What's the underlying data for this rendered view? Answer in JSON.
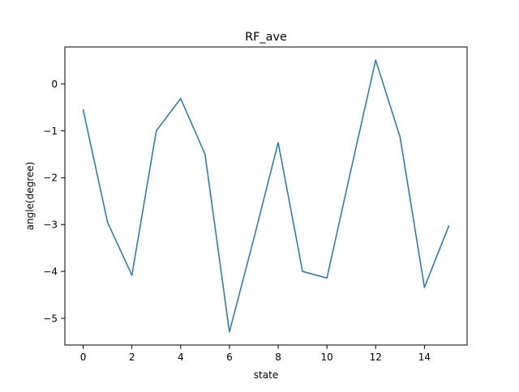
{
  "chart_data": {
    "type": "line",
    "title": "RF_ave",
    "xlabel": "state",
    "ylabel": "angle(degree)",
    "xlim": [
      -0.75,
      15.75
    ],
    "ylim": [
      -5.57,
      0.79
    ],
    "xticks": [
      0,
      2,
      4,
      6,
      8,
      10,
      12,
      14
    ],
    "xtick_labels": [
      "0",
      "2",
      "4",
      "6",
      "8",
      "10",
      "12",
      "14"
    ],
    "yticks": [
      0,
      -1,
      -2,
      -3,
      -4,
      -5
    ],
    "ytick_labels": [
      "0",
      "−1",
      "−2",
      "−3",
      "−4",
      "−5"
    ],
    "grid": false,
    "legend": "none",
    "line_color": "#1f77b4",
    "x": [
      0,
      1,
      2,
      3,
      4,
      5,
      6,
      7,
      8,
      9,
      10,
      11,
      12,
      13,
      14,
      15
    ],
    "series": [
      {
        "values": [
          -0.55,
          -2.95,
          -4.08,
          -1.0,
          -0.31,
          -1.5,
          -5.29,
          -3.3,
          -1.25,
          -4.0,
          -4.14,
          -1.8,
          0.51,
          -1.13,
          -4.34,
          -3.03
        ]
      }
    ]
  }
}
